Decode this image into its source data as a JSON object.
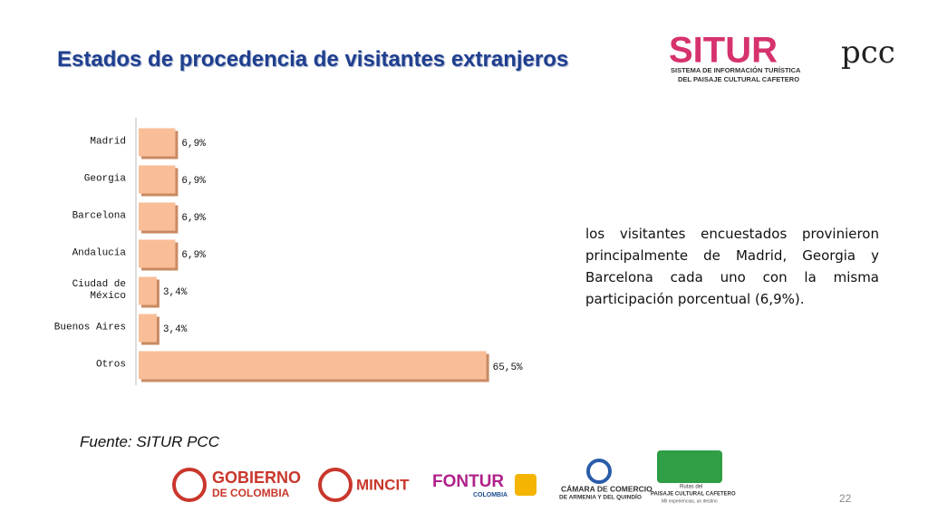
{
  "chart_data": {
    "type": "bar",
    "orientation": "horizontal",
    "title": "Estados de procedencia de visitantes extranjeros",
    "categories": [
      "Madrid",
      "Georgia",
      "Barcelona",
      "Andalucía",
      "Ciudad de México",
      "Buenos Aires",
      "Otros"
    ],
    "values": [
      6.9,
      6.9,
      6.9,
      6.9,
      3.4,
      3.4,
      65.5
    ],
    "value_labels": [
      "6,9%",
      "6,9%",
      "6,9%",
      "6,9%",
      "3,4%",
      "3,4%",
      "65,5%"
    ],
    "color": "#f9be97",
    "xlim": [
      0,
      70
    ]
  },
  "slide": {
    "body": "los visitantes encuestados provinieron principalmente de Madrid, Georgia y Barcelona cada uno con la misma participación porcentual (6,9%).",
    "source": "Fuente: SITUR PCC",
    "page_number": "22",
    "logos": {
      "situr": [
        "SITUR",
        "pcc",
        "SISTEMA DE INFORMACIÓN TURÍSTICA",
        "DEL PAISAJE CULTURAL CAFETERO"
      ],
      "gobierno": [
        "GOBIERNO",
        "DE COLOMBIA"
      ],
      "mincit": [
        "MINCIT"
      ],
      "fontur": [
        "FONTUR",
        "COLOMBIA"
      ],
      "camara": [
        "CÁMARA DE COMERCIO",
        "DE ARMENIA Y DEL QUINDÍO"
      ],
      "rutas": [
        "Rutas del",
        "PAISAJE CULTURAL CAFETERO",
        "Mil experiencias, un destino"
      ]
    }
  }
}
